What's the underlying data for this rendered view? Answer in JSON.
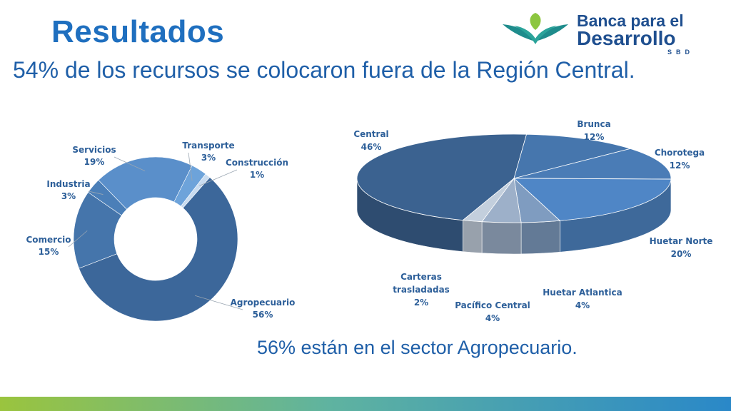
{
  "header": {
    "title": "Resultados",
    "subtitle": "54% de los recursos se colocaron fuera de la Región Central.",
    "note": "56% están en el sector Agropecuario."
  },
  "logo": {
    "line1": "Banca para el",
    "line2": "Desarrollo",
    "line3": "SBD"
  },
  "colors": {
    "title": "#1f6fbf",
    "text": "#1f5fa8",
    "label": "#2d5f99"
  },
  "chart_data": [
    {
      "type": "pie",
      "variant": "doughnut",
      "categories": [
        "Agropecuario",
        "Comercio",
        "Industria",
        "Servicios",
        "Transporte",
        "Construcción"
      ],
      "values": [
        56,
        15,
        3,
        19,
        3,
        1
      ],
      "labels": [
        "56%",
        "15%",
        "3%",
        "19%",
        "3%",
        "1%"
      ],
      "colors": [
        "#3c679a",
        "#4575ab",
        "#4b7fb8",
        "#5a8fca",
        "#6da3da",
        "#c9dcf0"
      ]
    },
    {
      "type": "pie",
      "variant": "3d",
      "categories": [
        "Central",
        "Brunca",
        "Chorotega",
        "Huetar Norte",
        "Huetar Atlantica",
        "Pacífico Central",
        "Carteras trasladadas"
      ],
      "label_lines": [
        [
          "Central"
        ],
        [
          "Brunca"
        ],
        [
          "Chorotega"
        ],
        [
          "Huetar Norte"
        ],
        [
          "Huetar Atlantica"
        ],
        [
          "Pacífico Central"
        ],
        [
          "Carteras",
          "trasladadas"
        ]
      ],
      "values": [
        46,
        12,
        12,
        20,
        4,
        4,
        2
      ],
      "labels": [
        "46%",
        "12%",
        "12%",
        "20%",
        "4%",
        "4%",
        "2%"
      ],
      "colors": [
        "#3b6290",
        "#4676ad",
        "#4a7cb6",
        "#4f86c6",
        "#7f9cc0",
        "#9db0c9",
        "#c3cfdd"
      ]
    }
  ]
}
